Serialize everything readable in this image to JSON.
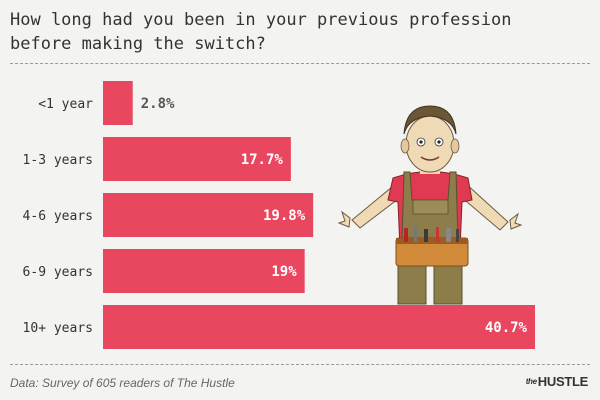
{
  "chart_data": {
    "type": "bar",
    "orientation": "horizontal",
    "title": "How long had you been in your previous profession\nbefore making the switch?",
    "categories": [
      "<1 year",
      "1-3 years",
      "4-6 years",
      "6-9 years",
      "10+ years"
    ],
    "values": [
      2.8,
      17.7,
      19.8,
      19,
      40.7
    ],
    "value_labels": [
      "2.8%",
      "17.7%",
      "19.8%",
      "19%",
      "40.7%"
    ],
    "unit": "%",
    "xlim": [
      0,
      40.7
    ],
    "grid": false,
    "legend": "none",
    "bar_color": "#e8475f"
  },
  "footer": {
    "source": "Data: Survey of 605 readers of The Hustle",
    "brand_prefix": "the",
    "brand": "HUSTLE"
  },
  "illustration": {
    "description_icon": "handyman-with-toolbelt-illustration"
  }
}
